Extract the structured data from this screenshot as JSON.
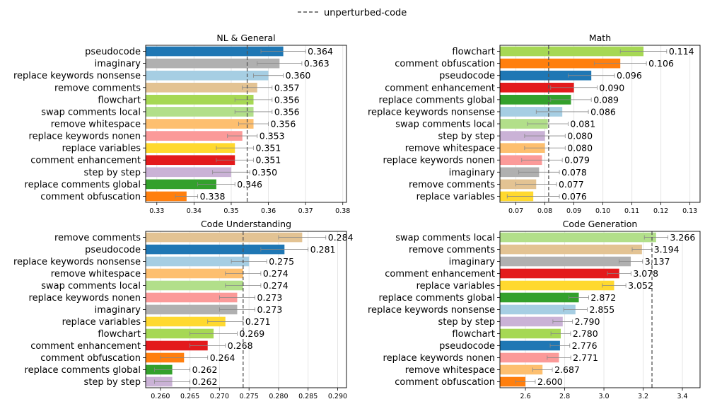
{
  "legend": {
    "label": "unperturbed-code"
  },
  "colors": {
    "pseudocode": "#1f77b4",
    "imaginary": "#b0b0b0",
    "replace keywords nonsense": "#a6cee3",
    "remove comments": "#e3c393",
    "flowchart": "#a6d854",
    "swap comments local": "#b2df8a",
    "remove whitespace": "#fdbf6f",
    "replace keywords nonen": "#fb9a99",
    "replace variables": "#ffd92f",
    "comment enhancement": "#e31a1c",
    "step by step": "#cab2d6",
    "replace comments global": "#33a02c",
    "comment obfuscation": "#ff7f0e",
    "baseline": "#555555",
    "errorbar": "#888888"
  },
  "chart_data": [
    {
      "type": "bar",
      "title": "NL & General",
      "categories": [
        "pseudocode",
        "imaginary",
        "replace keywords nonsense",
        "remove comments",
        "flowchart",
        "swap comments local",
        "remove whitespace",
        "replace keywords nonen",
        "replace variables",
        "comment enhancement",
        "step by step",
        "replace comments global",
        "comment obfuscation"
      ],
      "values": [
        0.364,
        0.363,
        0.36,
        0.357,
        0.356,
        0.356,
        0.356,
        0.353,
        0.351,
        0.351,
        0.35,
        0.346,
        0.338
      ],
      "value_labels": [
        "0.364",
        "0.363",
        "0.360",
        "0.357",
        "0.356",
        "0.356",
        "0.356",
        "0.353",
        "0.351",
        "0.351",
        "0.350",
        "0.346",
        "0.338"
      ],
      "errors": [
        0.006,
        0.006,
        0.004,
        0.004,
        0.005,
        0.005,
        0.004,
        0.004,
        0.005,
        0.005,
        0.005,
        0.005,
        0.003
      ],
      "baseline": 0.3543,
      "xlim": [
        0.327,
        0.381
      ],
      "xticks": [
        0.33,
        0.34,
        0.35,
        0.36,
        0.37,
        0.38
      ],
      "xtick_labels": [
        "0.33",
        "0.34",
        "0.35",
        "0.36",
        "0.37",
        "0.38"
      ]
    },
    {
      "type": "bar",
      "title": "Math",
      "categories": [
        "flowchart",
        "comment obfuscation",
        "pseudocode",
        "comment enhancement",
        "replace comments global",
        "replace keywords nonsense",
        "swap comments local",
        "step by step",
        "remove whitespace",
        "replace keywords nonen",
        "imaginary",
        "remove comments",
        "replace variables"
      ],
      "values": [
        0.114,
        0.106,
        0.096,
        0.09,
        0.089,
        0.086,
        0.081,
        0.08,
        0.08,
        0.079,
        0.078,
        0.077,
        0.076
      ],
      "value_labels": [
        "0.114",
        "0.106",
        "0.096",
        "0.090",
        "0.089",
        "0.086",
        "0.081",
        "0.080",
        "0.080",
        "0.079",
        "0.078",
        "0.077",
        "0.076"
      ],
      "errors": [
        0.008,
        0.009,
        0.008,
        0.008,
        0.007,
        0.009,
        0.007,
        0.007,
        0.007,
        0.007,
        0.007,
        0.007,
        0.009
      ],
      "baseline": 0.0813,
      "xlim": [
        0.0645,
        0.1335
      ],
      "xticks": [
        0.07,
        0.08,
        0.09,
        0.1,
        0.11,
        0.12,
        0.13
      ],
      "xtick_labels": [
        "0.07",
        "0.08",
        "0.09",
        "0.10",
        "0.11",
        "0.12",
        "0.13"
      ]
    },
    {
      "type": "bar",
      "title": "Code Understanding",
      "categories": [
        "remove comments",
        "pseudocode",
        "replace keywords nonsense",
        "remove whitespace",
        "swap comments local",
        "replace keywords nonen",
        "imaginary",
        "replace variables",
        "flowchart",
        "comment enhancement",
        "comment obfuscation",
        "replace comments global",
        "step by step"
      ],
      "values": [
        0.284,
        0.281,
        0.275,
        0.274,
        0.274,
        0.273,
        0.273,
        0.271,
        0.269,
        0.268,
        0.264,
        0.262,
        0.262
      ],
      "value_labels": [
        "0.284",
        "0.281",
        "0.275",
        "0.274",
        "0.274",
        "0.273",
        "0.273",
        "0.271",
        "0.269",
        "0.268",
        "0.264",
        "0.262",
        "0.262"
      ],
      "errors": [
        0.004,
        0.004,
        0.003,
        0.003,
        0.003,
        0.003,
        0.003,
        0.003,
        0.004,
        0.003,
        0.004,
        0.003,
        0.003
      ],
      "baseline": 0.274,
      "xlim": [
        0.2575,
        0.2915
      ],
      "xticks": [
        0.26,
        0.265,
        0.27,
        0.275,
        0.28,
        0.285,
        0.29
      ],
      "xtick_labels": [
        "0.260",
        "0.265",
        "0.270",
        "0.275",
        "0.280",
        "0.285",
        "0.290"
      ]
    },
    {
      "type": "bar",
      "title": "Code Generation",
      "categories": [
        "swap comments local",
        "remove comments",
        "imaginary",
        "comment enhancement",
        "replace variables",
        "replace comments global",
        "replace keywords nonsense",
        "step by step",
        "flowchart",
        "pseudocode",
        "replace keywords nonen",
        "remove whitespace",
        "comment obfuscation"
      ],
      "values": [
        3.266,
        3.194,
        3.137,
        3.078,
        3.052,
        2.872,
        2.855,
        2.79,
        2.78,
        2.776,
        2.771,
        2.687,
        2.6
      ],
      "value_labels": [
        "3.266",
        "3.194",
        "3.137",
        "3.078",
        "3.052",
        "2.872",
        "2.855",
        "2.790",
        "2.780",
        "2.776",
        "2.771",
        "2.687",
        "2.600"
      ],
      "errors": [
        0.06,
        0.05,
        0.06,
        0.06,
        0.06,
        0.05,
        0.06,
        0.05,
        0.05,
        0.05,
        0.06,
        0.05,
        0.05
      ],
      "baseline": 3.245,
      "xlim": [
        2.47,
        3.49
      ],
      "xticks": [
        2.6,
        2.8,
        3.0,
        3.2,
        3.4
      ],
      "xtick_labels": [
        "2.6",
        "2.8",
        "3.0",
        "3.2",
        "3.4"
      ]
    }
  ]
}
